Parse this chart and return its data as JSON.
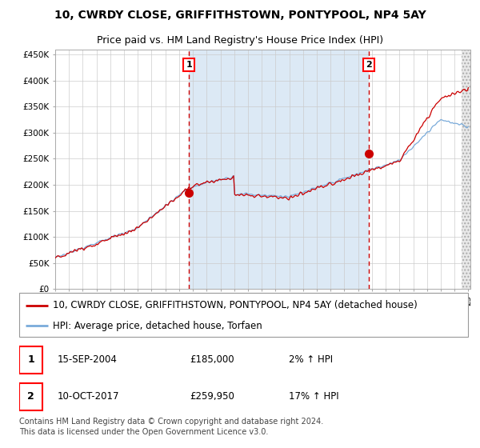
{
  "title": "10, CWRDY CLOSE, GRIFFITHSTOWN, PONTYPOOL, NP4 5AY",
  "subtitle": "Price paid vs. HM Land Registry's House Price Index (HPI)",
  "ylim": [
    0,
    460000
  ],
  "yticks": [
    0,
    50000,
    100000,
    150000,
    200000,
    250000,
    300000,
    350000,
    400000,
    450000
  ],
  "ytick_labels": [
    "£0",
    "£50K",
    "£100K",
    "£150K",
    "£200K",
    "£250K",
    "£300K",
    "£350K",
    "£400K",
    "£450K"
  ],
  "x_start_year": 1995,
  "x_end_year": 2025,
  "hpi_color": "#7aabda",
  "price_color": "#cc0000",
  "marker_color": "#cc0000",
  "bg_color": "#dce9f5",
  "dashed_line_color": "#cc0000",
  "legend_label_price": "10, CWRDY CLOSE, GRIFFITHSTOWN, PONTYPOOL, NP4 5AY (detached house)",
  "legend_label_hpi": "HPI: Average price, detached house, Torfaen",
  "annotation1_date": "15-SEP-2004",
  "annotation1_price": "£185,000",
  "annotation1_hpi": "2% ↑ HPI",
  "annotation1_year": 2004.71,
  "annotation1_value": 185000,
  "annotation2_date": "10-OCT-2017",
  "annotation2_price": "£259,950",
  "annotation2_hpi": "17% ↑ HPI",
  "annotation2_year": 2017.78,
  "annotation2_value": 259950,
  "footnote": "Contains HM Land Registry data © Crown copyright and database right 2024.\nThis data is licensed under the Open Government Licence v3.0.",
  "title_fontsize": 10,
  "subtitle_fontsize": 9,
  "tick_fontsize": 7.5,
  "legend_fontsize": 8.5,
  "annotation_fontsize": 8.5,
  "footnote_fontsize": 7
}
